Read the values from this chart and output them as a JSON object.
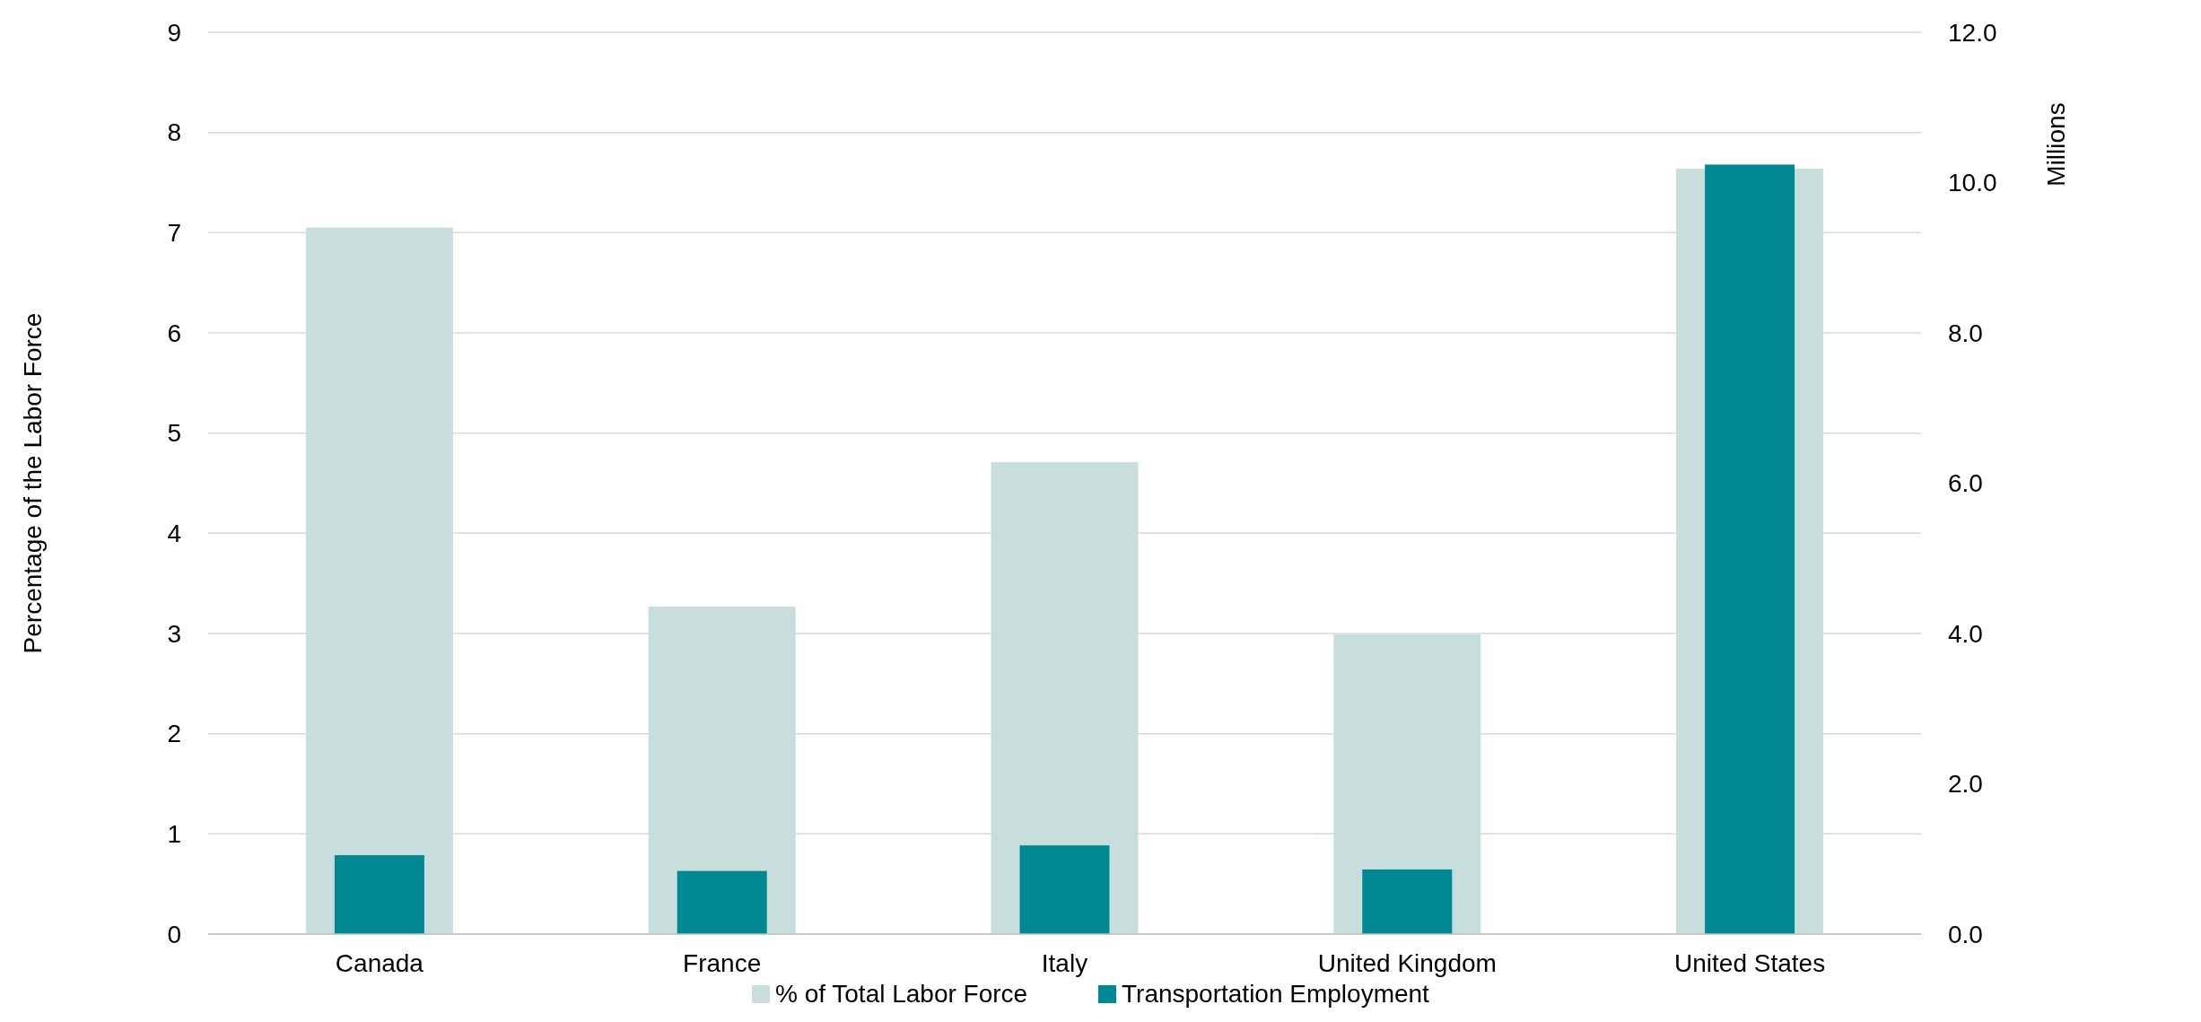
{
  "chart_data": {
    "type": "bar",
    "categories": [
      "Canada",
      "France",
      "Italy",
      "United Kingdom",
      "United States"
    ],
    "series": [
      {
        "name": "% of Total Labor Force",
        "color": "#c8dedc",
        "values": [
          7.05,
          3.27,
          4.71,
          2.99,
          7.64
        ]
      },
      {
        "name": "Transportation Employment",
        "color": "#008893",
        "axis": "y2",
        "values": [
          1.05,
          0.84,
          1.18,
          0.86,
          10.24
        ]
      }
    ],
    "ylabel": "Percentage of the Labor Force",
    "y2label": "Millions",
    "ylim": [
      0,
      9
    ],
    "yticks": [
      0,
      1,
      2,
      3,
      4,
      5,
      6,
      7,
      8,
      9
    ],
    "y2lim": [
      0,
      12
    ],
    "y2ticks": [
      {
        "value": 0,
        "label": "0.0"
      },
      {
        "value": 2,
        "label": "2.0"
      },
      {
        "value": 4,
        "label": "4.0"
      },
      {
        "value": 6,
        "label": "6.0"
      },
      {
        "value": 8,
        "label": "8.0"
      },
      {
        "value": 10,
        "label": "10.0"
      },
      {
        "value": 12,
        "label": "12.0"
      }
    ],
    "grid": "y",
    "legend": "bottom"
  }
}
